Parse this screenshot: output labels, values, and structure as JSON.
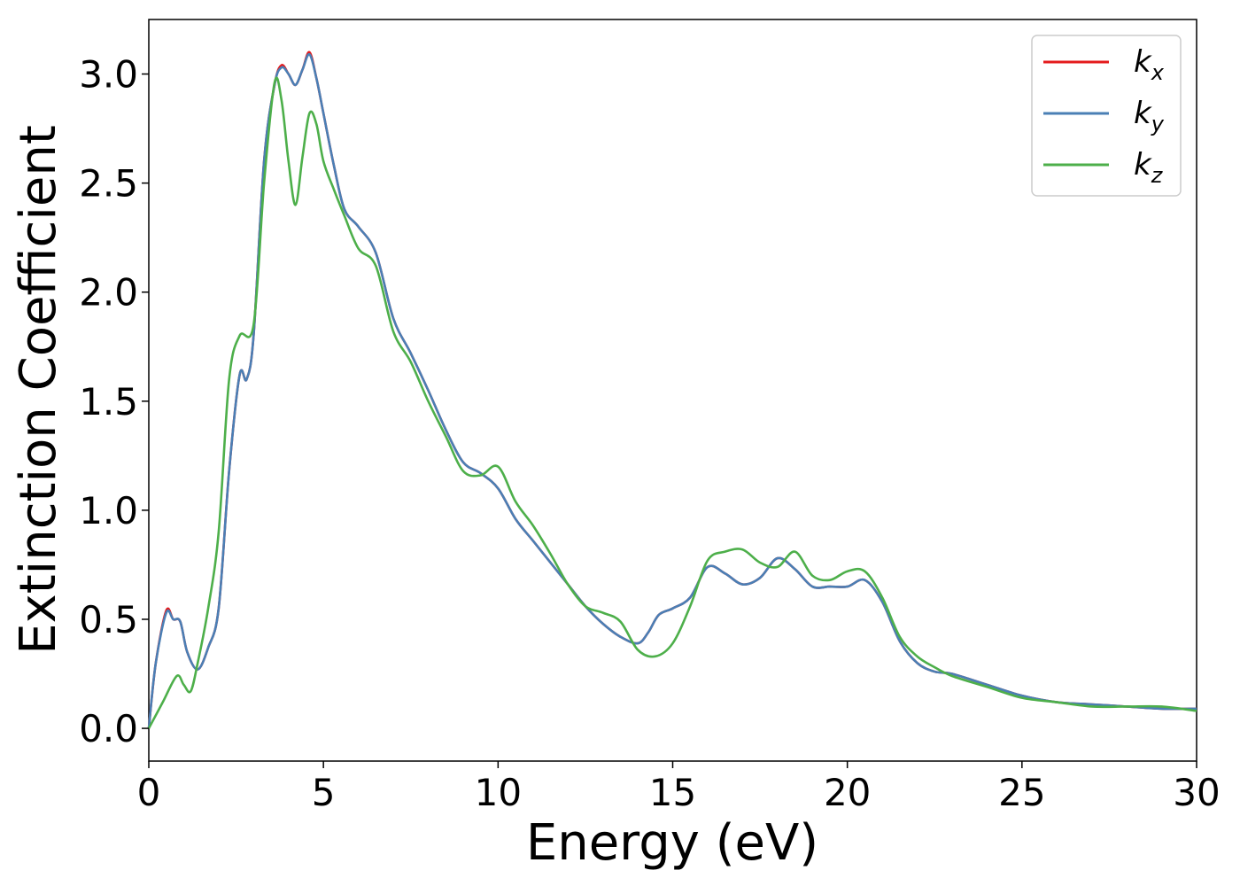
{
  "chart_data": {
    "type": "line",
    "title": "",
    "xlabel": "Energy (eV)",
    "ylabel": "Extinction Coefficient",
    "xlim": [
      0,
      30
    ],
    "ylim": [
      -0.15,
      3.25
    ],
    "xticks": [
      0,
      5,
      10,
      15,
      20,
      25,
      30
    ],
    "xtick_labels": [
      "0",
      "5",
      "10",
      "15",
      "20",
      "25",
      "30"
    ],
    "yticks": [
      0.0,
      0.5,
      1.0,
      1.5,
      2.0,
      2.5,
      3.0
    ],
    "ytick_labels": [
      "0.0",
      "0.5",
      "1.0",
      "1.5",
      "2.0",
      "2.5",
      "3.0"
    ],
    "grid": false,
    "legend": {
      "position": "top-right"
    },
    "series": [
      {
        "name": "k",
        "subscript": "x",
        "color": "#e41a1c",
        "x": [
          0,
          0.2,
          0.5,
          0.7,
          0.9,
          1.1,
          1.4,
          1.7,
          2.0,
          2.3,
          2.6,
          2.8,
          3.0,
          3.3,
          3.6,
          3.8,
          4.0,
          4.2,
          4.4,
          4.6,
          4.8,
          5.0,
          5.3,
          5.6,
          6.0,
          6.5,
          7.0,
          7.5,
          8.0,
          8.5,
          9.0,
          9.5,
          10.0,
          10.5,
          11.0,
          11.5,
          12.0,
          12.5,
          13.0,
          13.5,
          14.0,
          14.3,
          14.6,
          15.0,
          15.5,
          16.0,
          16.5,
          17.0,
          17.5,
          18.0,
          18.5,
          19.0,
          19.5,
          20.0,
          20.5,
          21.0,
          21.5,
          22.0,
          22.5,
          23.0,
          24.0,
          25.0,
          26.0,
          27.0,
          28.0,
          29.0,
          30.0
        ],
        "y": [
          0.0,
          0.3,
          0.54,
          0.5,
          0.49,
          0.35,
          0.27,
          0.37,
          0.55,
          1.18,
          1.62,
          1.6,
          1.8,
          2.6,
          2.95,
          3.04,
          3.0,
          2.95,
          3.02,
          3.1,
          2.98,
          2.82,
          2.58,
          2.38,
          2.3,
          2.18,
          1.88,
          1.72,
          1.55,
          1.37,
          1.22,
          1.17,
          1.1,
          0.96,
          0.86,
          0.76,
          0.66,
          0.56,
          0.48,
          0.42,
          0.39,
          0.44,
          0.52,
          0.55,
          0.6,
          0.74,
          0.71,
          0.66,
          0.69,
          0.78,
          0.73,
          0.65,
          0.65,
          0.65,
          0.68,
          0.58,
          0.4,
          0.3,
          0.26,
          0.25,
          0.2,
          0.15,
          0.12,
          0.11,
          0.1,
          0.09,
          0.09
        ]
      },
      {
        "name": "k",
        "subscript": "y",
        "color": "#4a7fb5",
        "x": [
          0,
          0.2,
          0.5,
          0.7,
          0.9,
          1.1,
          1.4,
          1.7,
          2.0,
          2.3,
          2.6,
          2.8,
          3.0,
          3.3,
          3.6,
          3.8,
          4.0,
          4.2,
          4.4,
          4.6,
          4.8,
          5.0,
          5.3,
          5.6,
          6.0,
          6.5,
          7.0,
          7.5,
          8.0,
          8.5,
          9.0,
          9.5,
          10.0,
          10.5,
          11.0,
          11.5,
          12.0,
          12.5,
          13.0,
          13.5,
          14.0,
          14.3,
          14.6,
          15.0,
          15.5,
          16.0,
          16.5,
          17.0,
          17.5,
          18.0,
          18.5,
          19.0,
          19.5,
          20.0,
          20.5,
          21.0,
          21.5,
          22.0,
          22.5,
          23.0,
          24.0,
          25.0,
          26.0,
          27.0,
          28.0,
          29.0,
          30.0
        ],
        "y": [
          0.0,
          0.3,
          0.53,
          0.5,
          0.49,
          0.35,
          0.27,
          0.37,
          0.55,
          1.18,
          1.62,
          1.6,
          1.8,
          2.6,
          2.95,
          3.03,
          3.0,
          2.95,
          3.02,
          3.09,
          2.98,
          2.82,
          2.58,
          2.38,
          2.3,
          2.18,
          1.88,
          1.72,
          1.55,
          1.37,
          1.22,
          1.17,
          1.1,
          0.96,
          0.86,
          0.76,
          0.66,
          0.56,
          0.48,
          0.42,
          0.39,
          0.44,
          0.52,
          0.55,
          0.6,
          0.74,
          0.71,
          0.66,
          0.69,
          0.78,
          0.73,
          0.65,
          0.65,
          0.65,
          0.68,
          0.58,
          0.4,
          0.3,
          0.26,
          0.25,
          0.2,
          0.15,
          0.12,
          0.11,
          0.1,
          0.09,
          0.09
        ]
      },
      {
        "name": "k",
        "subscript": "z",
        "color": "#4daf4a",
        "x": [
          0,
          0.4,
          0.8,
          1.0,
          1.2,
          1.4,
          1.7,
          2.0,
          2.3,
          2.6,
          3.0,
          3.3,
          3.6,
          3.8,
          4.0,
          4.2,
          4.4,
          4.6,
          4.8,
          5.0,
          5.3,
          5.6,
          6.0,
          6.5,
          7.0,
          7.5,
          8.0,
          8.5,
          9.0,
          9.5,
          10.0,
          10.5,
          11.0,
          11.5,
          12.0,
          12.5,
          13.0,
          13.5,
          14.0,
          14.5,
          15.0,
          15.5,
          16.0,
          16.5,
          17.0,
          17.5,
          18.0,
          18.5,
          19.0,
          19.5,
          20.0,
          20.5,
          21.0,
          21.5,
          22.0,
          22.5,
          23.0,
          24.0,
          25.0,
          26.0,
          27.0,
          28.0,
          29.0,
          30.0
        ],
        "y": [
          0.0,
          0.12,
          0.24,
          0.2,
          0.17,
          0.3,
          0.55,
          0.9,
          1.6,
          1.8,
          1.85,
          2.5,
          2.96,
          2.88,
          2.6,
          2.4,
          2.62,
          2.82,
          2.77,
          2.6,
          2.47,
          2.35,
          2.2,
          2.12,
          1.82,
          1.68,
          1.5,
          1.34,
          1.18,
          1.16,
          1.2,
          1.04,
          0.93,
          0.8,
          0.66,
          0.56,
          0.53,
          0.49,
          0.36,
          0.33,
          0.39,
          0.56,
          0.77,
          0.81,
          0.82,
          0.76,
          0.74,
          0.81,
          0.7,
          0.68,
          0.72,
          0.72,
          0.6,
          0.42,
          0.33,
          0.28,
          0.24,
          0.19,
          0.14,
          0.12,
          0.1,
          0.1,
          0.1,
          0.08
        ]
      }
    ]
  }
}
